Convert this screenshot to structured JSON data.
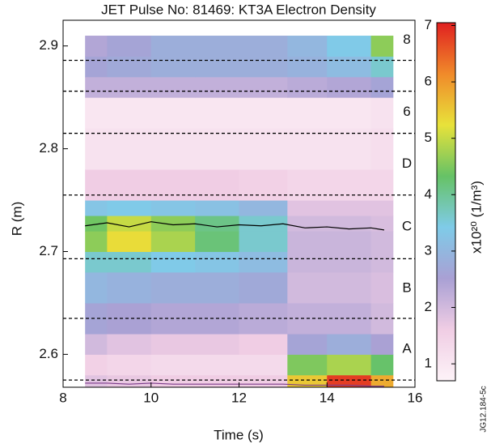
{
  "chart_data": {
    "type": "heatmap",
    "title": "JET Pulse No: 81469: KT3A Electron Density",
    "x_label": "Time (s)",
    "y_label": "R (m)",
    "xlim": [
      8,
      16
    ],
    "xticks": [
      8,
      10,
      12,
      14,
      16
    ],
    "ylim": [
      2.568,
      2.925
    ],
    "yticks": [
      2.6,
      2.7,
      2.8,
      2.9
    ],
    "x_bins": [
      8.5,
      9,
      10,
      11,
      12,
      13.1,
      14,
      15,
      15.5
    ],
    "y_bins": [
      2.568,
      2.58,
      2.6,
      2.62,
      2.65,
      2.68,
      2.7,
      2.72,
      2.735,
      2.75,
      2.78,
      2.82,
      2.85,
      2.87,
      2.89,
      2.91
    ],
    "z": [
      [
        1.8,
        1.7,
        1.6,
        1.6,
        1.6,
        5.5,
        6.8,
        5.8
      ],
      [
        1.5,
        1.4,
        1.3,
        1.3,
        1.3,
        4.5,
        4.8,
        4.3
      ],
      [
        2.0,
        1.8,
        1.7,
        1.7,
        1.6,
        2.6,
        2.8,
        2.5
      ],
      [
        2.6,
        2.5,
        2.4,
        2.4,
        2.3,
        2.2,
        2.2,
        2.0
      ],
      [
        3.0,
        2.9,
        2.8,
        2.8,
        2.7,
        2.0,
        2.0,
        1.9
      ],
      [
        3.6,
        3.6,
        3.4,
        3.3,
        3.1,
        2.1,
        2.1,
        2.0
      ],
      [
        4.6,
        5.3,
        4.8,
        4.2,
        3.6,
        2.1,
        2.1,
        2.0
      ],
      [
        4.4,
        5.0,
        4.6,
        4.1,
        3.6,
        2.0,
        2.0,
        1.9
      ],
      [
        3.3,
        3.4,
        3.3,
        3.2,
        3.0,
        1.8,
        1.8,
        1.8
      ],
      [
        1.6,
        1.6,
        1.6,
        1.6,
        1.5,
        1.4,
        1.4,
        1.4
      ],
      [
        1.1,
        1.1,
        1.1,
        1.1,
        1.1,
        1.1,
        1.1,
        1.2
      ],
      [
        1.0,
        1.0,
        1.0,
        1.0,
        1.0,
        1.0,
        1.0,
        1.1
      ],
      [
        2.2,
        2.2,
        2.2,
        2.2,
        2.2,
        2.3,
        2.4,
        2.6
      ],
      [
        2.6,
        2.7,
        2.8,
        2.8,
        2.8,
        2.9,
        3.1,
        3.6
      ],
      [
        2.4,
        2.6,
        2.8,
        2.8,
        2.8,
        3.0,
        3.4,
        4.6
      ]
    ],
    "clim": [
      0.7,
      7.05
    ],
    "cticks": [
      1,
      2,
      3,
      4,
      5,
      6,
      7
    ],
    "colorbar_label": "x10²⁰ (1/m³)",
    "colormap": [
      "#fdf3f8",
      "#f0cde4",
      "#a9a0d4",
      "#7fcbe8",
      "#66c266",
      "#e8e23a",
      "#f08a2a",
      "#e02020"
    ],
    "hlines": [
      2.886,
      2.856,
      2.815,
      2.755,
      2.693,
      2.635,
      2.575
    ],
    "region_labels": [
      "8",
      null,
      "6",
      "D",
      "C",
      "B",
      "A"
    ],
    "series": [
      {
        "color": "#000000",
        "x": [
          8.5,
          9,
          9.5,
          10,
          10.5,
          11,
          11.5,
          12,
          12.5,
          13,
          13.5,
          14,
          14.5,
          15,
          15.3
        ],
        "values": [
          2.725,
          2.728,
          2.724,
          2.729,
          2.726,
          2.727,
          2.724,
          2.726,
          2.725,
          2.727,
          2.723,
          2.724,
          2.722,
          2.723,
          2.721
        ]
      },
      {
        "color": "#7a3a8a",
        "x": [
          8.5,
          9,
          9.5,
          10,
          10.5,
          11,
          11.5,
          12,
          12.5,
          13,
          13.5,
          14,
          14.5,
          15,
          15.3
        ],
        "values": [
          2.572,
          2.572,
          2.571,
          2.572,
          2.571,
          2.571,
          2.571,
          2.571,
          2.571,
          2.571,
          2.57,
          2.57,
          2.57,
          2.569,
          2.569
        ]
      }
    ],
    "watermark": "JG12.184-5c"
  }
}
